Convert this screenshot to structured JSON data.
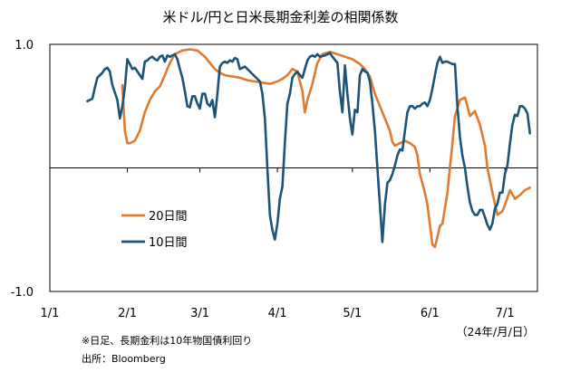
{
  "chart_data": {
    "type": "line",
    "title": "米ドル/円と日米長期金利差の相関係数",
    "xlabel": "",
    "ylabel": "",
    "unit_label": "（24年/月/日）",
    "ylim": [
      -1.0,
      1.0
    ],
    "y_ticks": [
      "1.0",
      "-1.0"
    ],
    "x_ticks": [
      "1/1",
      "2/1",
      "3/1",
      "4/1",
      "5/1",
      "6/1",
      "7/1"
    ],
    "x_range_days": [
      0,
      195
    ],
    "grid": false,
    "legend_position": "center-left",
    "notes": [
      "※日足、長期金利は10年物国債利回り",
      "出所：Bloomberg"
    ],
    "series": [
      {
        "name": "20日間",
        "color": "#e07a30",
        "points": [
          [
            29,
            0.67
          ],
          [
            30,
            0.3
          ],
          [
            31,
            0.2
          ],
          [
            32,
            0.2
          ],
          [
            34,
            0.22
          ],
          [
            36,
            0.3
          ],
          [
            38,
            0.45
          ],
          [
            40,
            0.55
          ],
          [
            42,
            0.62
          ],
          [
            44,
            0.66
          ],
          [
            46,
            0.75
          ],
          [
            48,
            0.85
          ],
          [
            50,
            0.92
          ],
          [
            53,
            0.95
          ],
          [
            56,
            0.96
          ],
          [
            59,
            0.95
          ],
          [
            62,
            0.9
          ],
          [
            64,
            0.85
          ],
          [
            66,
            0.8
          ],
          [
            68,
            0.77
          ],
          [
            70,
            0.75
          ],
          [
            73,
            0.74
          ],
          [
            76,
            0.73
          ],
          [
            79,
            0.71
          ],
          [
            82,
            0.7
          ],
          [
            85,
            0.69
          ],
          [
            88,
            0.68
          ],
          [
            91,
            0.7
          ],
          [
            93,
            0.72
          ],
          [
            95,
            0.75
          ],
          [
            97,
            0.8
          ],
          [
            99,
            0.78
          ],
          [
            101,
            0.62
          ],
          [
            102,
            0.45
          ],
          [
            103,
            0.55
          ],
          [
            105,
            0.68
          ],
          [
            107,
            0.85
          ],
          [
            109,
            0.92
          ],
          [
            112,
            0.94
          ],
          [
            115,
            0.92
          ],
          [
            118,
            0.9
          ],
          [
            121,
            0.88
          ],
          [
            124,
            0.84
          ],
          [
            126,
            0.8
          ],
          [
            128,
            0.74
          ],
          [
            130,
            0.6
          ],
          [
            132,
            0.5
          ],
          [
            134,
            0.4
          ],
          [
            136,
            0.3
          ],
          [
            137,
            0.21
          ],
          [
            138,
            0.18
          ],
          [
            140,
            0.2
          ],
          [
            142,
            0.22
          ],
          [
            144,
            0.2
          ],
          [
            146,
            0.17
          ],
          [
            147,
            0.1
          ],
          [
            148,
            -0.05
          ],
          [
            150,
            -0.2
          ],
          [
            151,
            -0.3
          ],
          [
            153,
            -0.62
          ],
          [
            154,
            -0.64
          ],
          [
            155,
            -0.56
          ],
          [
            156,
            -0.47
          ],
          [
            157,
            -0.45
          ],
          [
            159,
            -0.2
          ],
          [
            160,
            0.0
          ],
          [
            161,
            0.2
          ],
          [
            162,
            0.42
          ],
          [
            164,
            0.55
          ],
          [
            166,
            0.57
          ],
          [
            167,
            0.5
          ],
          [
            168,
            0.42
          ],
          [
            170,
            0.46
          ],
          [
            172,
            0.35
          ],
          [
            174,
            0.18
          ],
          [
            175,
            0.0
          ],
          [
            177,
            -0.2
          ],
          [
            179,
            -0.38
          ],
          [
            181,
            -0.35
          ],
          [
            182,
            -0.3
          ],
          [
            184,
            -0.18
          ],
          [
            186,
            -0.25
          ],
          [
            188,
            -0.22
          ],
          [
            190,
            -0.18
          ],
          [
            192,
            -0.16
          ]
        ]
      },
      {
        "name": "10日間",
        "color": "#1b5476",
        "points": [
          [
            15,
            0.54
          ],
          [
            16,
            0.55
          ],
          [
            17,
            0.56
          ],
          [
            18,
            0.65
          ],
          [
            19,
            0.73
          ],
          [
            21,
            0.77
          ],
          [
            22,
            0.8
          ],
          [
            23,
            0.81
          ],
          [
            24,
            0.78
          ],
          [
            25,
            0.67
          ],
          [
            27,
            0.55
          ],
          [
            28,
            0.4
          ],
          [
            29,
            0.5
          ],
          [
            30,
            0.65
          ],
          [
            31,
            0.88
          ],
          [
            32,
            0.84
          ],
          [
            33,
            0.8
          ],
          [
            34,
            0.81
          ],
          [
            35,
            0.78
          ],
          [
            36,
            0.75
          ],
          [
            37,
            0.72
          ],
          [
            38,
            0.86
          ],
          [
            39,
            0.87
          ],
          [
            40,
            0.89
          ],
          [
            41,
            0.9
          ],
          [
            42,
            0.88
          ],
          [
            43,
            0.87
          ],
          [
            44,
            0.9
          ],
          [
            45,
            0.91
          ],
          [
            46,
            0.86
          ],
          [
            47,
            0.91
          ],
          [
            48,
            0.9
          ],
          [
            50,
            0.92
          ],
          [
            51,
            0.88
          ],
          [
            52,
            0.8
          ],
          [
            53,
            0.73
          ],
          [
            54,
            0.62
          ],
          [
            55,
            0.5
          ],
          [
            56,
            0.49
          ],
          [
            57,
            0.58
          ],
          [
            58,
            0.58
          ],
          [
            59,
            0.52
          ],
          [
            60,
            0.48
          ],
          [
            61,
            0.6
          ],
          [
            62,
            0.6
          ],
          [
            63,
            0.52
          ],
          [
            64,
            0.5
          ],
          [
            65,
            0.55
          ],
          [
            66,
            0.41
          ],
          [
            67,
            0.6
          ],
          [
            68,
            0.82
          ],
          [
            69,
            0.85
          ],
          [
            70,
            0.86
          ],
          [
            71,
            0.85
          ],
          [
            72,
            0.87
          ],
          [
            73,
            0.86
          ],
          [
            74,
            0.89
          ],
          [
            75,
            0.88
          ],
          [
            76,
            0.8
          ],
          [
            78,
            0.82
          ],
          [
            80,
            0.78
          ],
          [
            82,
            0.74
          ],
          [
            84,
            0.7
          ],
          [
            85,
            0.6
          ],
          [
            86,
            0.4
          ],
          [
            87,
            0.0
          ],
          [
            88,
            -0.38
          ],
          [
            89,
            -0.5
          ],
          [
            90,
            -0.58
          ],
          [
            91,
            -0.45
          ],
          [
            92,
            -0.25
          ],
          [
            93,
            -0.15
          ],
          [
            94,
            0.2
          ],
          [
            95,
            0.52
          ],
          [
            96,
            0.6
          ],
          [
            97,
            0.73
          ],
          [
            98,
            0.76
          ],
          [
            99,
            0.78
          ],
          [
            100,
            0.75
          ],
          [
            101,
            0.73
          ],
          [
            102,
            0.8
          ],
          [
            103,
            0.87
          ],
          [
            104,
            0.9
          ],
          [
            105,
            0.91
          ],
          [
            106,
            0.9
          ],
          [
            107,
            0.92
          ],
          [
            108,
            0.9
          ],
          [
            110,
            0.91
          ],
          [
            112,
            0.93
          ],
          [
            113,
            0.9
          ],
          [
            115,
            0.85
          ],
          [
            116,
            0.62
          ],
          [
            117,
            0.45
          ],
          [
            118,
            0.83
          ],
          [
            119,
            0.6
          ],
          [
            120,
            0.4
          ],
          [
            121,
            0.27
          ],
          [
            122,
            0.47
          ],
          [
            123,
            0.45
          ],
          [
            124,
            0.75
          ],
          [
            125,
            0.8
          ],
          [
            126,
            0.78
          ],
          [
            127,
            0.77
          ],
          [
            128,
            0.7
          ],
          [
            129,
            0.52
          ],
          [
            130,
            0.3
          ],
          [
            131,
            0.0
          ],
          [
            132,
            -0.3
          ],
          [
            133,
            -0.6
          ],
          [
            134,
            -0.3
          ],
          [
            135,
            -0.12
          ],
          [
            136,
            -0.1
          ],
          [
            137,
            -0.05
          ],
          [
            138,
            0.02
          ],
          [
            139,
            0.1
          ],
          [
            140,
            0.15
          ],
          [
            141,
            0.14
          ],
          [
            142,
            0.3
          ],
          [
            143,
            0.45
          ],
          [
            144,
            0.5
          ],
          [
            145,
            0.5
          ],
          [
            146,
            0.48
          ],
          [
            147,
            0.5
          ],
          [
            148,
            0.5
          ],
          [
            149,
            0.52
          ],
          [
            150,
            0.53
          ],
          [
            151,
            0.5
          ],
          [
            152,
            0.55
          ],
          [
            153,
            0.64
          ],
          [
            154,
            0.75
          ],
          [
            155,
            0.85
          ],
          [
            156,
            0.9
          ],
          [
            157,
            0.85
          ],
          [
            158,
            0.86
          ],
          [
            159,
            0.86
          ],
          [
            160,
            0.85
          ],
          [
            161,
            0.84
          ],
          [
            162,
            0.84
          ],
          [
            163,
            0.5
          ],
          [
            164,
            0.25
          ],
          [
            165,
            0.1
          ],
          [
            166,
            0.0
          ],
          [
            167,
            -0.15
          ],
          [
            168,
            -0.28
          ],
          [
            169,
            -0.35
          ],
          [
            170,
            -0.38
          ],
          [
            171,
            -0.38
          ],
          [
            172,
            -0.34
          ],
          [
            173,
            -0.34
          ],
          [
            174,
            -0.4
          ],
          [
            175,
            -0.46
          ],
          [
            176,
            -0.5
          ],
          [
            177,
            -0.45
          ],
          [
            178,
            -0.33
          ],
          [
            179,
            -0.29
          ],
          [
            180,
            -0.2
          ],
          [
            181,
            -0.2
          ],
          [
            182,
            -0.05
          ],
          [
            183,
            0.02
          ],
          [
            184,
            0.2
          ],
          [
            185,
            0.35
          ],
          [
            186,
            0.43
          ],
          [
            187,
            0.42
          ],
          [
            188,
            0.5
          ],
          [
            189,
            0.5
          ],
          [
            190,
            0.48
          ],
          [
            191,
            0.44
          ],
          [
            192,
            0.28
          ]
        ]
      }
    ]
  }
}
